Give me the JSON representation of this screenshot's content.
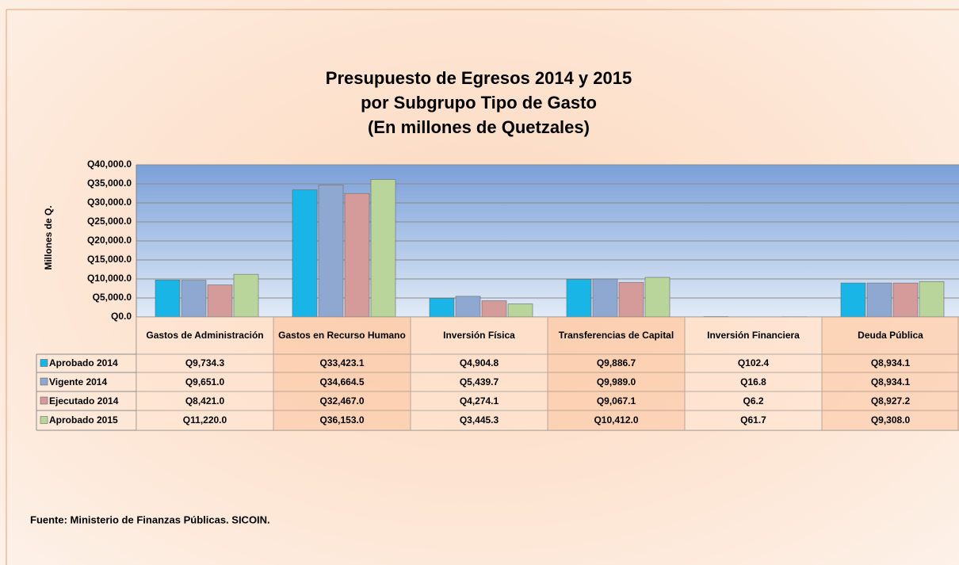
{
  "chart_data": {
    "type": "bar",
    "title": [
      "Presupuesto  de Egresos 2014 y 2015",
      "por Subgrupo Tipo de Gasto",
      "(En millones de Quetzales)"
    ],
    "y_label": "Millones de Q.",
    "categories": [
      "Gastos de Administración",
      "Gastos en Recurso Humano",
      "Inversión Física",
      "Transferencias de Capital",
      "Inversión Financiera",
      "Deuda Pública"
    ],
    "series": [
      {
        "name": "Aprobado 2014",
        "color": "#19b5e6",
        "values": [
          9734.3,
          33423.1,
          4904.8,
          9886.7,
          102.4,
          8934.1
        ],
        "value_labels": [
          "Q9,734.3",
          "Q33,423.1",
          "Q4,904.8",
          "Q9,886.7",
          "Q102.4",
          "Q8,934.1"
        ]
      },
      {
        "name": "Vigente 2014",
        "color": "#8fa8d2",
        "values": [
          9651.0,
          34664.5,
          5439.7,
          9989.0,
          16.8,
          8934.1
        ],
        "value_labels": [
          "Q9,651.0",
          "Q34,664.5",
          "Q5,439.7",
          "Q9,989.0",
          "Q16.8",
          "Q8,934.1"
        ]
      },
      {
        "name": "Ejecutado 2014",
        "color": "#d59a9a",
        "values": [
          8421.0,
          32467.0,
          4274.1,
          9067.1,
          6.2,
          8927.2
        ],
        "value_labels": [
          "Q8,421.0",
          "Q32,467.0",
          "Q4,274.1",
          "Q9,067.1",
          "Q6.2",
          "Q8,927.2"
        ]
      },
      {
        "name": "Aprobado 2015",
        "color": "#b9d59b",
        "values": [
          11220.0,
          36153.0,
          3445.3,
          10412.0,
          61.7,
          9308.0
        ],
        "value_labels": [
          "Q11,220.0",
          "Q36,153.0",
          "Q3,445.3",
          "Q10,412.0",
          "Q61.7",
          "Q9,308.0"
        ]
      }
    ],
    "ylim": [
      0,
      40000
    ],
    "yticks": [
      {
        "value": 0,
        "label": "Q0.0"
      },
      {
        "value": 5000,
        "label": "Q5,000.0"
      },
      {
        "value": 10000,
        "label": "Q10,000.0"
      },
      {
        "value": 15000,
        "label": "Q15,000.0"
      },
      {
        "value": 20000,
        "label": "Q20,000.0"
      },
      {
        "value": 25000,
        "label": "Q25,000.0"
      },
      {
        "value": 30000,
        "label": "Q30,000.0"
      },
      {
        "value": 35000,
        "label": "Q35,000.0"
      },
      {
        "value": 40000,
        "label": "Q40,000.0"
      }
    ],
    "grid": true,
    "source": "Fuente: Ministerio de Finanzas Públicas. SICOIN."
  }
}
